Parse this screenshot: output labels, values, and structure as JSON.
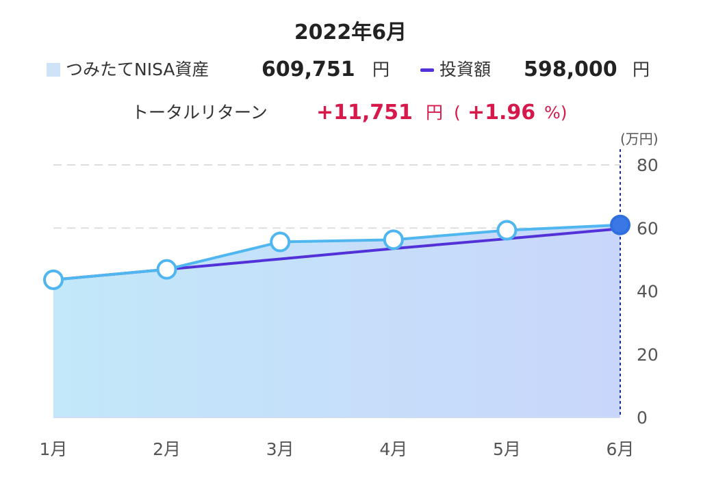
{
  "header": {
    "title": "2022年6月"
  },
  "legend": {
    "asset_label": "つみたてNISA資産",
    "asset_value": "609,751",
    "asset_unit": "円",
    "invest_label": "投資額",
    "invest_value": "598,000",
    "invest_unit": "円"
  },
  "total_return": {
    "label": "トータルリターン",
    "value": "+11,751",
    "unit": "円",
    "paren_open": "(",
    "percent": "+1.96",
    "percent_unit": "%)"
  },
  "colors": {
    "asset_line": "#4fb6ef",
    "asset_fill_left": "#c2e8f9",
    "asset_fill_right": "#c9d6fb",
    "invest_line": "#5232d8",
    "marker_fill": "#ffffff",
    "selected_marker": "#3b78e6",
    "cursor_line": "#1a2eb0",
    "grid": "#dddddd",
    "return_red": "#d6184a"
  },
  "chart_data": {
    "type": "area",
    "unit_label": "(万円)",
    "categories": [
      "1月",
      "2月",
      "3月",
      "4月",
      "5月",
      "6月"
    ],
    "series": [
      {
        "name": "つみたてNISA資産",
        "values": [
          43.6,
          46.9,
          55.6,
          56.3,
          59.3,
          60.98
        ]
      },
      {
        "name": "投資額",
        "values": [
          43.6,
          46.9,
          50.2,
          53.5,
          56.6,
          59.8
        ]
      }
    ],
    "y_ticks": [
      "0",
      "20",
      "40",
      "60",
      "80"
    ],
    "ylim": [
      0,
      80
    ],
    "grid": true,
    "selected_index": 5
  }
}
